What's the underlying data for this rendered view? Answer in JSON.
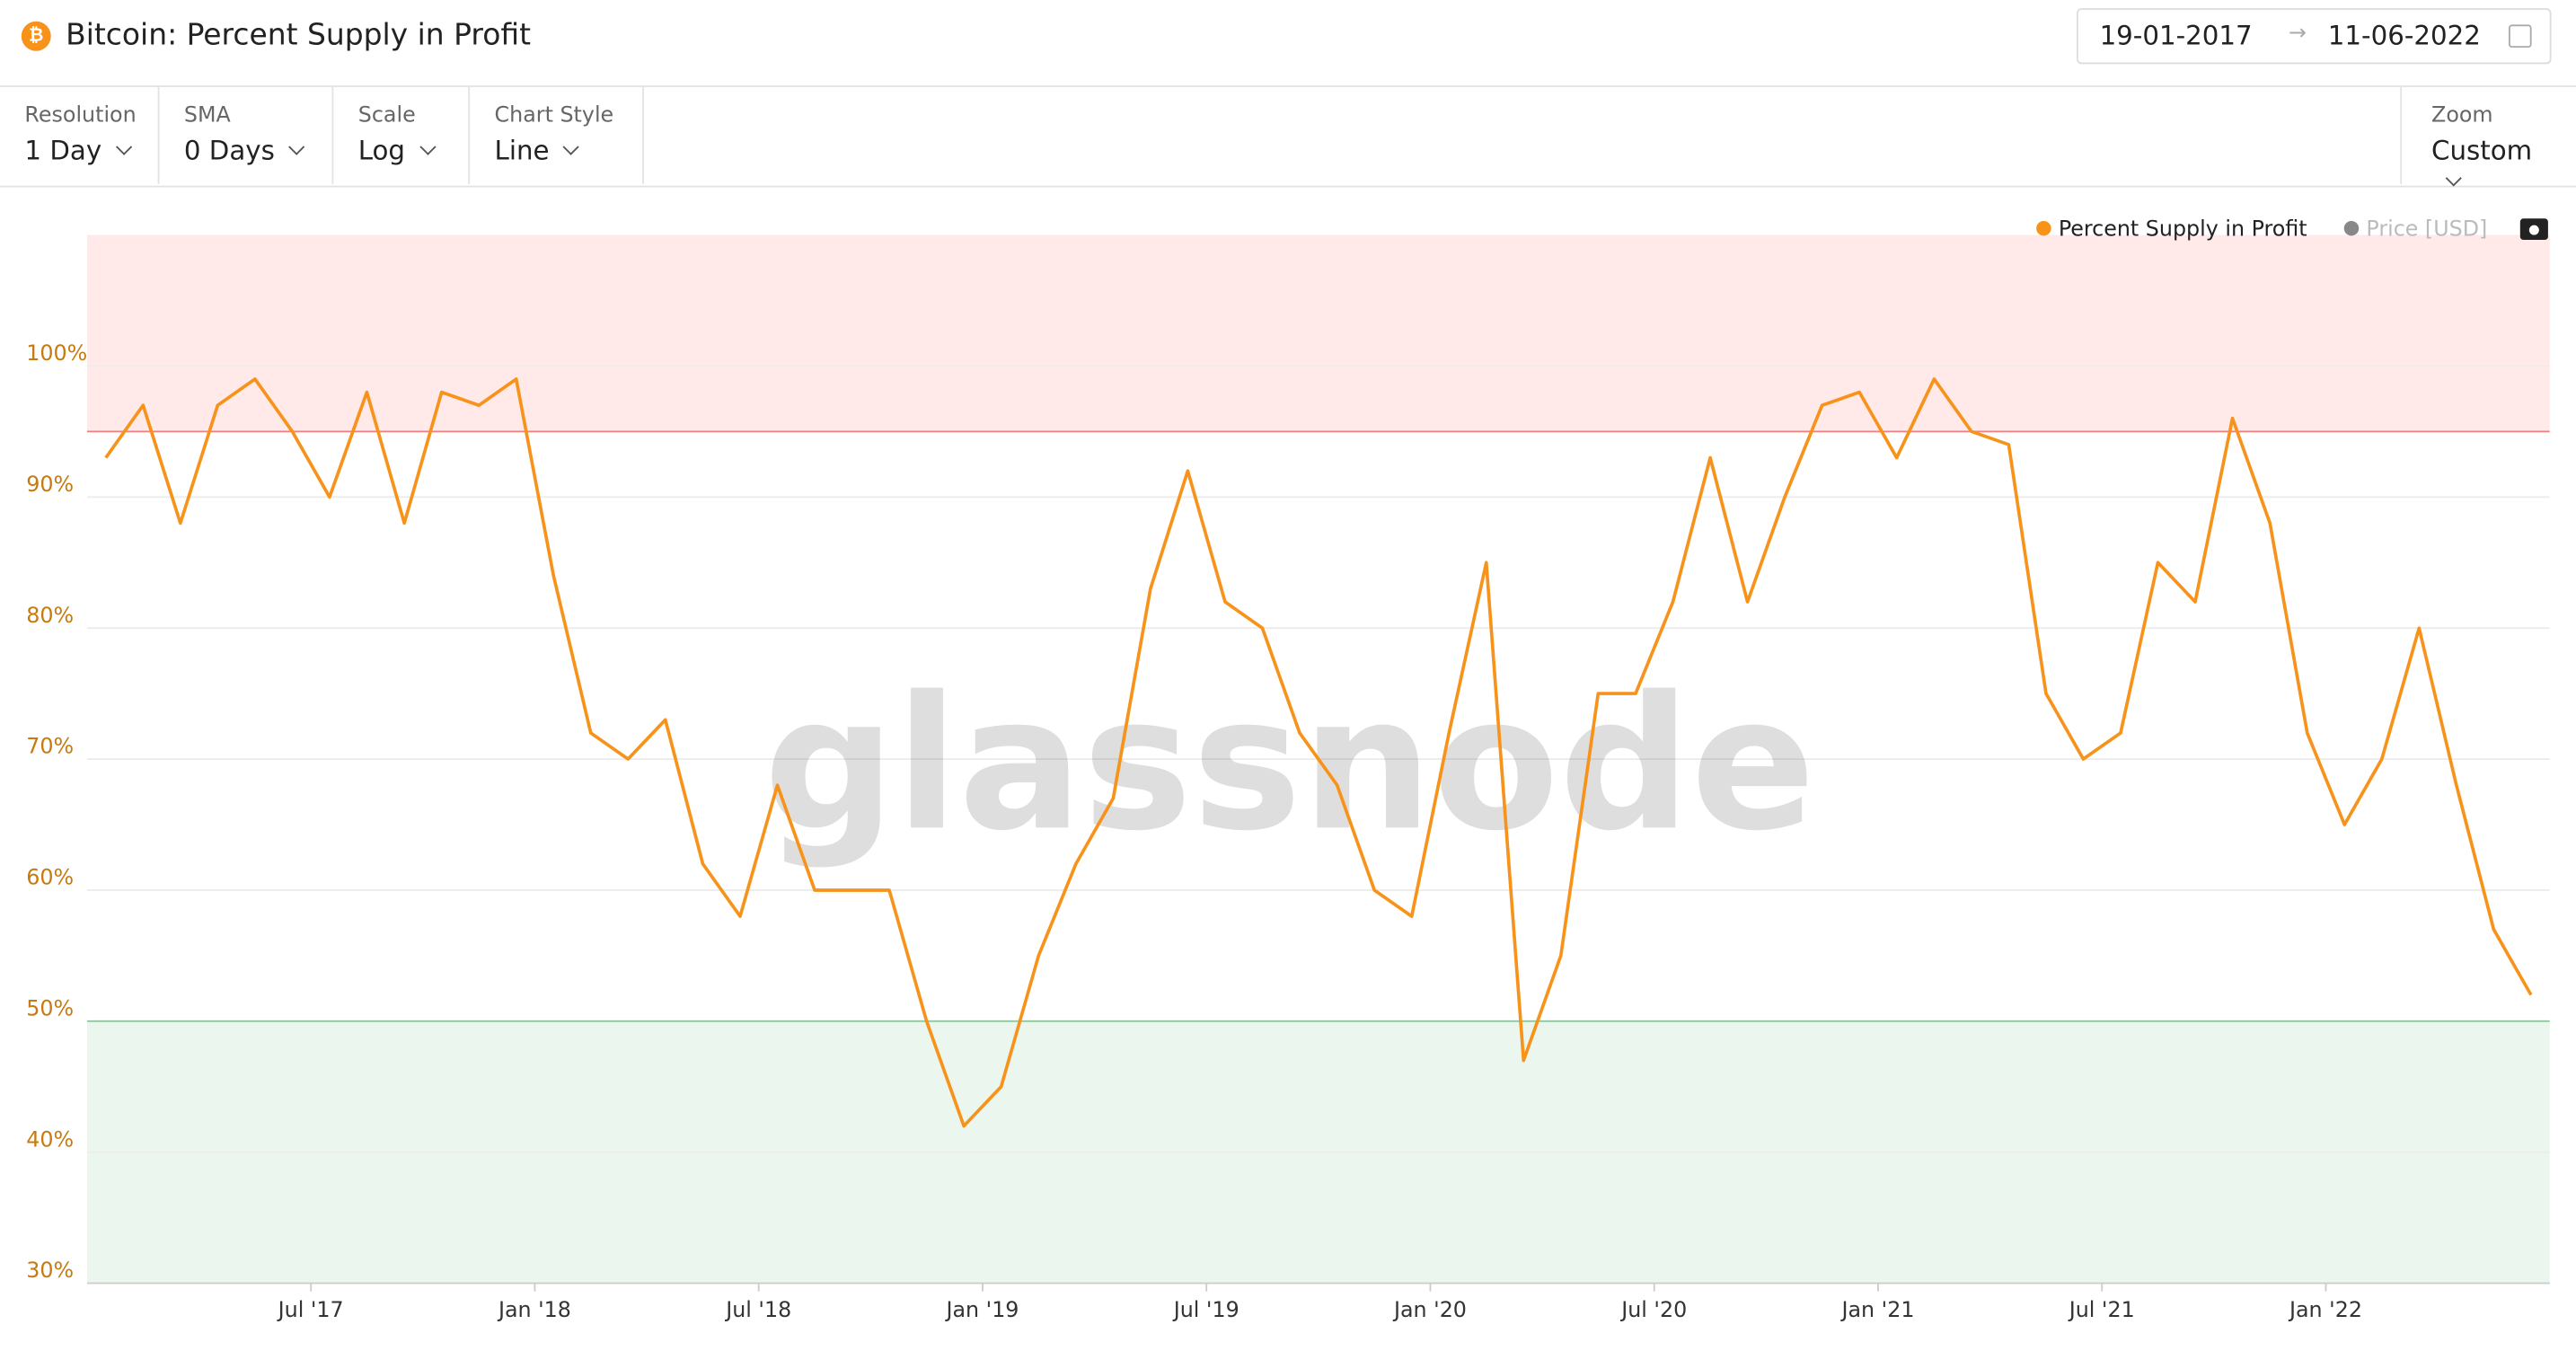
{
  "header": {
    "title": "Bitcoin: Percent Supply in Profit",
    "date_from": "19-01-2017",
    "date_to": "11-06-2022"
  },
  "controls": [
    {
      "label": "Resolution",
      "value": "1 Day"
    },
    {
      "label": "SMA",
      "value": "0 Days"
    },
    {
      "label": "Scale",
      "value": "Log"
    },
    {
      "label": "Chart Style",
      "value": "Line"
    }
  ],
  "zoom": {
    "label": "Zoom",
    "value": "Custom"
  },
  "watermark": "glassnode",
  "inactive_legend": {
    "name": "Price [USD]",
    "color": "#888888"
  },
  "chart_data": {
    "type": "line",
    "x": [
      "2017-01",
      "2017-02",
      "2017-03",
      "2017-04",
      "2017-05",
      "2017-06",
      "2017-07",
      "2017-08",
      "2017-09",
      "2017-10",
      "2017-11",
      "2017-12",
      "2018-01",
      "2018-02",
      "2018-03",
      "2018-04",
      "2018-05",
      "2018-06",
      "2018-07",
      "2018-08",
      "2018-09",
      "2018-10",
      "2018-11",
      "2018-12",
      "2019-01",
      "2019-02",
      "2019-03",
      "2019-04",
      "2019-05",
      "2019-06",
      "2019-07",
      "2019-08",
      "2019-09",
      "2019-10",
      "2019-11",
      "2019-12",
      "2020-01",
      "2020-02",
      "2020-03",
      "2020-04",
      "2020-05",
      "2020-06",
      "2020-07",
      "2020-08",
      "2020-09",
      "2020-10",
      "2020-11",
      "2020-12",
      "2021-01",
      "2021-02",
      "2021-03",
      "2021-04",
      "2021-05",
      "2021-06",
      "2021-07",
      "2021-08",
      "2021-09",
      "2021-10",
      "2021-11",
      "2021-12",
      "2022-01",
      "2022-02",
      "2022-03",
      "2022-04",
      "2022-05",
      "2022-06"
    ],
    "series": [
      {
        "name": "Percent Supply in Profit",
        "color": "#f7931a",
        "values": [
          93,
          97,
          88,
          97,
          99,
          95,
          90,
          98,
          88,
          98,
          97,
          99,
          84,
          72,
          70,
          73,
          62,
          58,
          68,
          60,
          60,
          60,
          50,
          42,
          45,
          55,
          62,
          67,
          83,
          92,
          82,
          80,
          72,
          68,
          60,
          58,
          72,
          85,
          47,
          55,
          75,
          75,
          82,
          93,
          82,
          90,
          97,
          98,
          93,
          99,
          95,
          94,
          75,
          70,
          72,
          85,
          82,
          96,
          88,
          72,
          65,
          70,
          80,
          68,
          57,
          52
        ]
      }
    ],
    "xlim": [
      "2017-01",
      "2022-06"
    ],
    "xticks": [
      {
        "value": "2017-07",
        "label": "Jul '17"
      },
      {
        "value": "2018-01",
        "label": "Jan '18"
      },
      {
        "value": "2018-07",
        "label": "Jul '18"
      },
      {
        "value": "2019-01",
        "label": "Jan '19"
      },
      {
        "value": "2019-07",
        "label": "Jul '19"
      },
      {
        "value": "2020-01",
        "label": "Jan '20"
      },
      {
        "value": "2020-07",
        "label": "Jul '20"
      },
      {
        "value": "2021-01",
        "label": "Jan '21"
      },
      {
        "value": "2021-07",
        "label": "Jul '21"
      },
      {
        "value": "2022-01",
        "label": "Jan '22"
      }
    ],
    "ylim": [
      30,
      110
    ],
    "yticks": [
      {
        "value": 30,
        "label": "30%"
      },
      {
        "value": 40,
        "label": "40%"
      },
      {
        "value": 50,
        "label": "50%"
      },
      {
        "value": 60,
        "label": "60%"
      },
      {
        "value": 70,
        "label": "70%"
      },
      {
        "value": 80,
        "label": "80%"
      },
      {
        "value": 90,
        "label": "90%"
      },
      {
        "value": 100,
        "label": "100%"
      }
    ],
    "grid": true,
    "bands": [
      {
        "from": 95,
        "to": 110,
        "color": "#ffe9e9",
        "line": "#f08080"
      },
      {
        "from": 30,
        "to": 50,
        "color": "#ebf6ee",
        "line": "#8fc9a0"
      }
    ],
    "legend": "top-right"
  }
}
